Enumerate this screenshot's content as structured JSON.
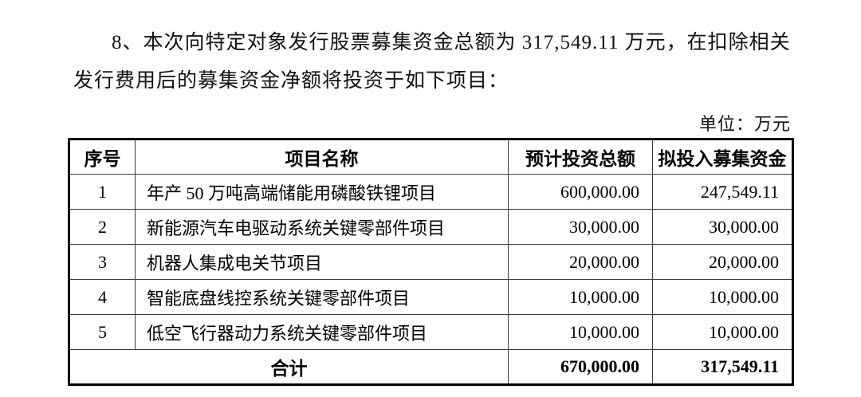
{
  "document": {
    "paragraph": {
      "line1": "8、本次向特定对象发行股票募集资金总额为 317,549.11 万元，在扣除相关",
      "line2": "发行费用后的募集资金净额将投资于如下项目："
    },
    "unit_label": "单位：万元",
    "table": {
      "headers": [
        "序号",
        "项目名称",
        "预计投资总额",
        "拟投入募集资金"
      ],
      "rows": [
        {
          "no": "1",
          "name": "年产 50 万吨高端储能用磷酸铁锂项目",
          "estimated_total": "600,000.00",
          "raised_funds": "247,549.11"
        },
        {
          "no": "2",
          "name": "新能源汽车电驱动系统关键零部件项目",
          "estimated_total": "30,000.00",
          "raised_funds": "30,000.00"
        },
        {
          "no": "3",
          "name": "机器人集成电关节项目",
          "estimated_total": "20,000.00",
          "raised_funds": "20,000.00"
        },
        {
          "no": "4",
          "name": "智能底盘线控系统关键零部件项目",
          "estimated_total": "10,000.00",
          "raised_funds": "10,000.00"
        },
        {
          "no": "5",
          "name": "低空飞行器动力系统关键零部件项目",
          "estimated_total": "10,000.00",
          "raised_funds": "10,000.00"
        }
      ],
      "total_row": {
        "label": "合计",
        "estimated_total": "670,000.00",
        "raised_funds": "317,549.11"
      }
    }
  }
}
